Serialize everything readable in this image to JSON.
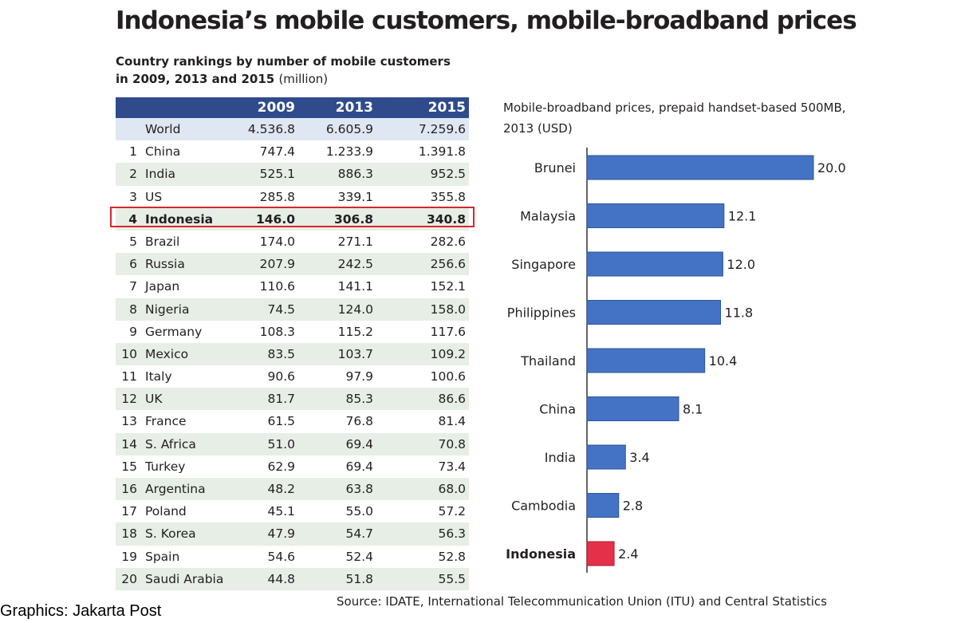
{
  "title": "Indonesia’s mobile customers, mobile-broadband prices",
  "table": {
    "subtitle_line1": "Country rankings by number of mobile customers",
    "subtitle_line2": "in 2009, 2013 and 2015",
    "subtitle_unit": "(million)",
    "columns": [
      "2009",
      "2013",
      "2015"
    ],
    "world": {
      "label": "World",
      "v2009": "4.536.8",
      "v2013": "6.605.9",
      "v2015": "7.259.6"
    },
    "highlight_rank": "4",
    "rows": [
      {
        "rank": "1",
        "country": "China",
        "v2009": "747.4",
        "v2013": "1.233.9",
        "v2015": "1.391.8"
      },
      {
        "rank": "2",
        "country": "India",
        "v2009": "525.1",
        "v2013": "886.3",
        "v2015": "952.5"
      },
      {
        "rank": "3",
        "country": "US",
        "v2009": "285.8",
        "v2013": "339.1",
        "v2015": "355.8"
      },
      {
        "rank": "4",
        "country": "Indonesia",
        "v2009": "146.0",
        "v2013": "306.8",
        "v2015": "340.8"
      },
      {
        "rank": "5",
        "country": "Brazil",
        "v2009": "174.0",
        "v2013": "271.1",
        "v2015": "282.6"
      },
      {
        "rank": "6",
        "country": "Russia",
        "v2009": "207.9",
        "v2013": "242.5",
        "v2015": "256.6"
      },
      {
        "rank": "7",
        "country": "Japan",
        "v2009": "110.6",
        "v2013": "141.1",
        "v2015": "152.1"
      },
      {
        "rank": "8",
        "country": "Nigeria",
        "v2009": "74.5",
        "v2013": "124.0",
        "v2015": "158.0"
      },
      {
        "rank": "9",
        "country": "Germany",
        "v2009": "108.3",
        "v2013": "115.2",
        "v2015": "117.6"
      },
      {
        "rank": "10",
        "country": "Mexico",
        "v2009": "83.5",
        "v2013": "103.7",
        "v2015": "109.2"
      },
      {
        "rank": "11",
        "country": "Italy",
        "v2009": "90.6",
        "v2013": "97.9",
        "v2015": "100.6"
      },
      {
        "rank": "12",
        "country": "UK",
        "v2009": "81.7",
        "v2013": "85.3",
        "v2015": "86.6"
      },
      {
        "rank": "13",
        "country": "France",
        "v2009": "61.5",
        "v2013": "76.8",
        "v2015": "81.4"
      },
      {
        "rank": "14",
        "country": "S. Africa",
        "v2009": "51.0",
        "v2013": "69.4",
        "v2015": "70.8"
      },
      {
        "rank": "15",
        "country": "Turkey",
        "v2009": "62.9",
        "v2013": "69.4",
        "v2015": "73.4"
      },
      {
        "rank": "16",
        "country": "Argentina",
        "v2009": "48.2",
        "v2013": "63.8",
        "v2015": "68.0"
      },
      {
        "rank": "17",
        "country": "Poland",
        "v2009": "45.1",
        "v2013": "55.0",
        "v2015": "57.2"
      },
      {
        "rank": "18",
        "country": "S. Korea",
        "v2009": "47.9",
        "v2013": "54.7",
        "v2015": "56.3"
      },
      {
        "rank": "19",
        "country": "Spain",
        "v2009": "54.6",
        "v2013": "52.4",
        "v2015": "52.8"
      },
      {
        "rank": "20",
        "country": "Saudi Arabia",
        "v2009": "44.8",
        "v2013": "51.8",
        "v2015": "55.5"
      }
    ]
  },
  "chart_data": [
    {
      "type": "table",
      "title": "Country rankings by number of mobile customers in 2009, 2013 and 2015 (million)",
      "columns": [
        "2009",
        "2013",
        "2015"
      ]
    },
    {
      "type": "bar",
      "orientation": "horizontal",
      "title_line1": "Mobile-broadband prices, prepaid handset-based 500MB,",
      "title_line2": "2013 (USD)",
      "categories": [
        "Brunei",
        "Malaysia",
        "Singapore",
        "Philippines",
        "Thailand",
        "China",
        "India",
        "Cambodia",
        "Indonesia"
      ],
      "values": [
        20.0,
        12.1,
        12.0,
        11.8,
        10.4,
        8.1,
        3.4,
        2.8,
        2.4
      ],
      "highlight": "Indonesia",
      "xlim": [
        0,
        20
      ],
      "grid": false,
      "legend": "none",
      "colors": {
        "bar": "#4472c4",
        "bar_stroke": "#2f5597",
        "highlight": "#e5304a",
        "axis": "#333333"
      }
    }
  ],
  "footer": {
    "credit": "Graphics: Jakarta Post",
    "source": "Source: IDATE, International Telecommunication Union (ITU) and Central Statistics"
  }
}
